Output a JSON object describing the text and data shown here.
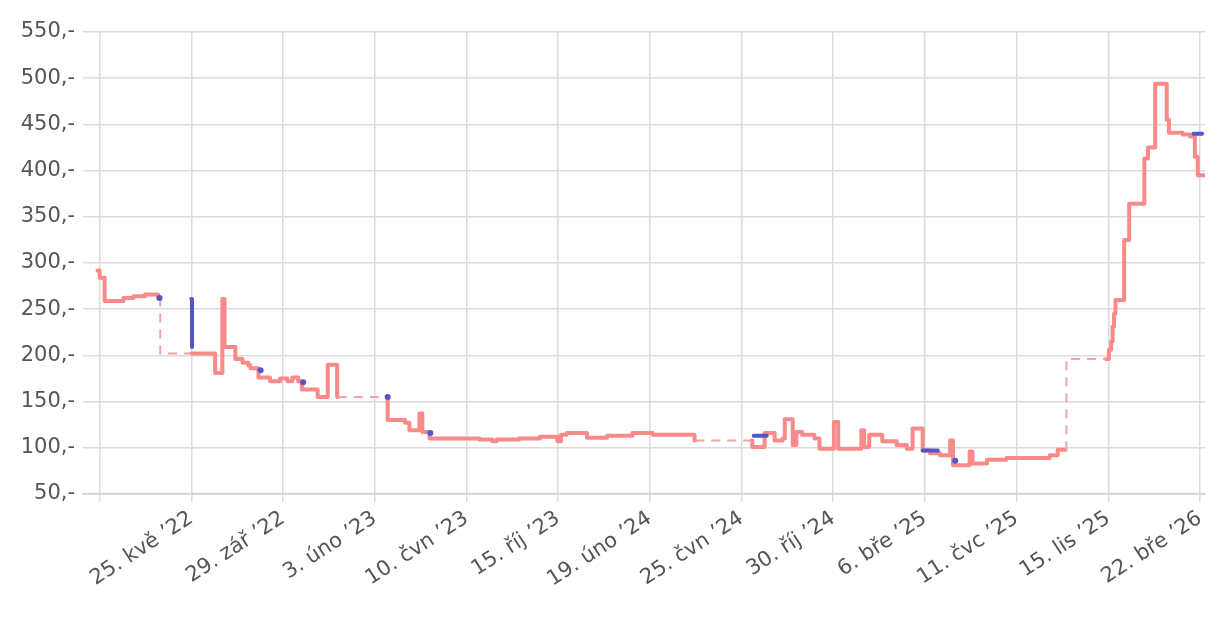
{
  "chart_data": {
    "type": "step",
    "xlim": [
      "2021-12-26",
      "2026-03-29"
    ],
    "xticks": [
      {
        "value": "2022-01-18",
        "label": null
      },
      {
        "value": "2022-05-25",
        "label": "25. kvě ’22"
      },
      {
        "value": "2022-09-29",
        "label": "29. zář ’22"
      },
      {
        "value": "2023-02-03",
        "label": "3. úno ’23"
      },
      {
        "value": "2023-06-10",
        "label": "10. čvn ’23"
      },
      {
        "value": "2023-10-15",
        "label": "15. říj ’23"
      },
      {
        "value": "2024-02-19",
        "label": "19. úno ’24"
      },
      {
        "value": "2024-06-25",
        "label": "25. čvn ’24"
      },
      {
        "value": "2024-10-30",
        "label": "30. říj ’24"
      },
      {
        "value": "2025-03-06",
        "label": "6. bře ’25"
      },
      {
        "value": "2025-07-11",
        "label": "11. čvc ’25"
      },
      {
        "value": "2025-11-15",
        "label": "15. lis ’25"
      },
      {
        "value": "2026-03-22",
        "label": "22. bře ’26"
      }
    ],
    "ylim": [
      50,
      550
    ],
    "yticks": [
      {
        "value": 50,
        "label": "50,-"
      },
      {
        "value": 100,
        "label": "100,-"
      },
      {
        "value": 150,
        "label": "150,-"
      },
      {
        "value": 200,
        "label": "200,-"
      },
      {
        "value": 250,
        "label": "250,-"
      },
      {
        "value": 300,
        "label": "300,-"
      },
      {
        "value": 350,
        "label": "350,-"
      },
      {
        "value": 400,
        "label": "400,-"
      },
      {
        "value": 450,
        "label": "450,-"
      },
      {
        "value": 500,
        "label": "500,-"
      },
      {
        "value": 550,
        "label": "550,-"
      }
    ],
    "grid": true,
    "series": [
      {
        "color": "#f98a8a",
        "line_style": "solid",
        "x": [
          "2022-01-15",
          "2022-01-18",
          "2022-01-25",
          "2022-02-20",
          "2022-03-06",
          "2022-03-22",
          "2022-04-09",
          "2022-04-11",
          "2022-04-12",
          "2022-05-25",
          "2022-06-27",
          "2022-07-07",
          "2022-07-10",
          "2022-07-25",
          "2022-08-04",
          "2022-08-12",
          "2022-08-15",
          "2022-08-26",
          "2022-09-11",
          "2022-09-25",
          "2022-10-05",
          "2022-10-12",
          "2022-10-20",
          "2022-10-25",
          "2022-11-16",
          "2022-11-30",
          "2022-12-13",
          "2022-12-14",
          "2022-12-15",
          "2023-02-20",
          "2023-02-21",
          "2023-03-17",
          "2023-03-23",
          "2023-04-06",
          "2023-04-10",
          "2023-04-20",
          "2023-06-28",
          "2023-07-16",
          "2023-07-22",
          "2023-08-22",
          "2023-09-20",
          "2023-10-14",
          "2023-10-19",
          "2023-10-27",
          "2023-11-24",
          "2023-12-22",
          "2024-01-26",
          "2024-02-23",
          "2024-04-21",
          "2024-04-22",
          "2024-04-23",
          "2024-07-09",
          "2024-07-10",
          "2024-07-27",
          "2024-08-10",
          "2024-08-21",
          "2024-08-24",
          "2024-09-04",
          "2024-09-09",
          "2024-09-17",
          "2024-10-04",
          "2024-10-11",
          "2024-10-31",
          "2024-11-06",
          "2024-12-08",
          "2024-12-12",
          "2024-12-19",
          "2025-01-06",
          "2025-01-26",
          "2025-02-09",
          "2025-02-17",
          "2025-03-03",
          "2025-03-13",
          "2025-03-27",
          "2025-04-10",
          "2025-04-14",
          "2025-05-07",
          "2025-05-11",
          "2025-05-31",
          "2025-06-27",
          "2025-08-26",
          "2025-09-06",
          "2025-09-17",
          "2025-09-18",
          "2025-11-12",
          "2025-11-16",
          "2025-11-19",
          "2025-11-21",
          "2025-11-23",
          "2025-11-25",
          "2025-12-07",
          "2025-12-14",
          "2026-01-04",
          "2026-01-09",
          "2026-01-19",
          "2026-02-04",
          "2026-02-07",
          "2026-02-26",
          "2026-03-08",
          "2026-03-15",
          "2026-03-19",
          "2026-03-29"
        ],
        "values": [
          292,
          284,
          259,
          262,
          264,
          266,
          262,
          262,
          null,
          202,
          181,
          261,
          209,
          196,
          192,
          189,
          186,
          176,
          172,
          175,
          172,
          176,
          172,
          163,
          155,
          190,
          155,
          155,
          null,
          155,
          130,
          127,
          119,
          137,
          117,
          110,
          109,
          107,
          109,
          110,
          112,
          107,
          114,
          116,
          111,
          113,
          116,
          114,
          108,
          108,
          null,
          108,
          101,
          116,
          108,
          110,
          131,
          103,
          117,
          114,
          110,
          99,
          128,
          99,
          119,
          101,
          114,
          107,
          103,
          99,
          121,
          97,
          94,
          92,
          108,
          81,
          96,
          83,
          87,
          89,
          92,
          98,
          98,
          null,
          196,
          206,
          215,
          231,
          245,
          260,
          325,
          364,
          413,
          425,
          494,
          455,
          441,
          439,
          437,
          415,
          395,
          395
        ]
      },
      {
        "color": "#f5a3a3",
        "line_style": "dashed",
        "x": [
          "2022-04-11",
          "2022-04-12",
          "2022-05-25",
          "2022-05-26",
          "2022-12-14",
          "2023-02-20",
          "2023-02-21",
          "2024-04-22",
          "2024-07-09",
          "2024-07-10",
          "2025-09-17",
          "2025-09-18",
          "2025-11-12"
        ],
        "values": [
          262,
          202,
          202,
          null,
          155,
          155,
          null,
          108,
          108,
          null,
          98,
          196,
          196
        ]
      },
      {
        "color": "#5356c5",
        "line_style": "solid",
        "x": [
          "2022-05-25",
          "2022-05-26",
          "2022-05-27",
          "2024-07-12",
          "2024-07-30",
          "2024-07-31",
          "2025-03-03",
          "2025-03-24",
          "2025-03-25",
          "2026-03-13",
          "2026-03-25"
        ],
        "values": [
          261,
          209,
          null,
          113,
          113,
          null,
          97,
          97,
          null,
          440,
          440
        ]
      },
      {
        "type": "scatter",
        "marker": "circle",
        "color": "#5356c5",
        "x": [
          "2022-04-11",
          "2022-08-29",
          "2022-10-27",
          "2023-02-21",
          "2023-04-21",
          "2025-04-17"
        ],
        "values": [
          262,
          184,
          171,
          155,
          116,
          86
        ]
      }
    ]
  }
}
